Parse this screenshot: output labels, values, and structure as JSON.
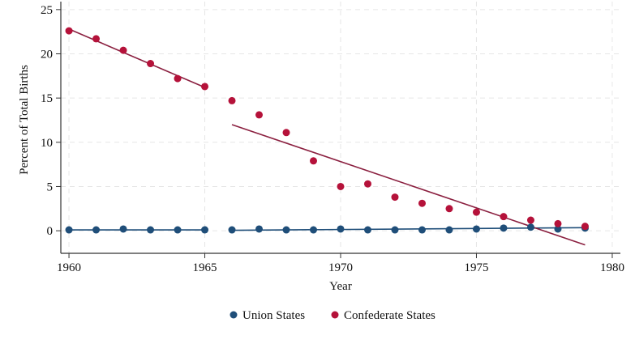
{
  "chart_data": {
    "type": "scatter",
    "xlabel": "Year",
    "ylabel": "Percent of Total Births",
    "xlim": [
      1959.7,
      1980.3
    ],
    "ylim": [
      -2.55,
      25.9
    ],
    "xticks": [
      1960,
      1965,
      1970,
      1975,
      1980
    ],
    "yticks": [
      0,
      5,
      10,
      15,
      20,
      25
    ],
    "grid": true,
    "legend_position": "bottom",
    "series": [
      {
        "name": "Union States",
        "color": "#1f4e79",
        "x": [
          1960,
          1961,
          1962,
          1963,
          1964,
          1965,
          1966,
          1967,
          1968,
          1969,
          1970,
          1971,
          1972,
          1973,
          1974,
          1975,
          1976,
          1977,
          1978,
          1979
        ],
        "y": [
          0.1,
          0.1,
          0.2,
          0.1,
          0.1,
          0.1,
          0.1,
          0.2,
          0.1,
          0.1,
          0.2,
          0.1,
          0.1,
          0.1,
          0.1,
          0.2,
          0.3,
          0.4,
          0.2,
          0.3
        ],
        "fit_lines": [
          {
            "x": [
              1960,
              1965
            ],
            "y": [
              0.1,
              0.1
            ]
          },
          {
            "x": [
              1966,
              1979
            ],
            "y": [
              0.05,
              0.35
            ]
          }
        ]
      },
      {
        "name": "Confederate States",
        "color": "#b5123a",
        "fit_color": "#8b2040",
        "x": [
          1960,
          1961,
          1962,
          1963,
          1964,
          1965,
          1966,
          1967,
          1968,
          1969,
          1970,
          1971,
          1972,
          1973,
          1974,
          1975,
          1976,
          1977,
          1978,
          1979
        ],
        "y": [
          22.6,
          21.7,
          20.4,
          18.9,
          17.2,
          16.3,
          14.7,
          13.1,
          11.1,
          7.9,
          5.0,
          5.3,
          3.8,
          3.1,
          2.5,
          2.1,
          1.6,
          1.2,
          0.8,
          0.5
        ],
        "fit_lines": [
          {
            "x": [
              1960,
              1965
            ],
            "y": [
              22.8,
              16.2
            ]
          },
          {
            "x": [
              1966,
              1979
            ],
            "y": [
              12.0,
              -1.6
            ]
          }
        ]
      }
    ]
  }
}
